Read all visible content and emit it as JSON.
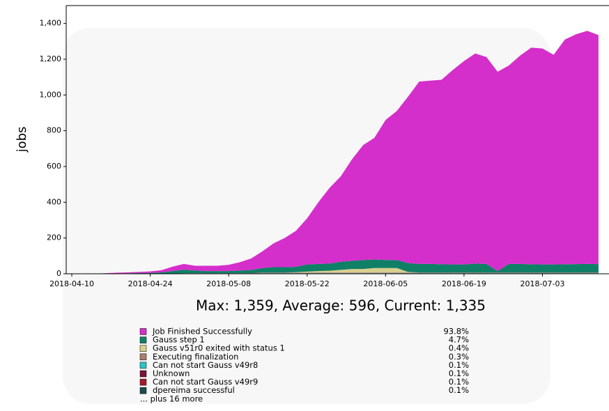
{
  "chart_data": {
    "type": "stacked_area",
    "subtitle": "Max: 1,359, Average: 596, Current: 1,335",
    "y_label": "jobs",
    "x": [
      "2018-04-10",
      "2018-04-12",
      "2018-04-14",
      "2018-04-16",
      "2018-04-18",
      "2018-04-20",
      "2018-04-22",
      "2018-04-24",
      "2018-04-26",
      "2018-04-28",
      "2018-04-30",
      "2018-05-02",
      "2018-05-04",
      "2018-05-06",
      "2018-05-08",
      "2018-05-10",
      "2018-05-12",
      "2018-05-14",
      "2018-05-16",
      "2018-05-18",
      "2018-05-20",
      "2018-05-22",
      "2018-05-24",
      "2018-05-26",
      "2018-05-28",
      "2018-05-30",
      "2018-06-01",
      "2018-06-03",
      "2018-06-05",
      "2018-06-07",
      "2018-06-09",
      "2018-06-11",
      "2018-06-13",
      "2018-06-15",
      "2018-06-17",
      "2018-06-19",
      "2018-06-21",
      "2018-06-23",
      "2018-06-25",
      "2018-06-27",
      "2018-06-29",
      "2018-07-01",
      "2018-07-03",
      "2018-07-05",
      "2018-07-07",
      "2018-07-09",
      "2018-07-11",
      "2018-07-13"
    ],
    "xlim": [
      "2018-04-09",
      "2018-07-15"
    ],
    "xticks": [
      "2018-04-10",
      "2018-04-24",
      "2018-05-08",
      "2018-05-22",
      "2018-06-05",
      "2018-06-19",
      "2018-07-03"
    ],
    "ylim": [
      0,
      1500
    ],
    "yticks": [
      0,
      200,
      400,
      600,
      800,
      {
        "value": 1000,
        "label": "1,000"
      },
      {
        "value": 1200,
        "label": "1,200"
      },
      {
        "value": 1400,
        "label": "1,400"
      }
    ],
    "series": [
      {
        "name": "Job Finished Successfully",
        "share": "93.8%",
        "color": "#d52fcb",
        "values": [
          0,
          0,
          1,
          2,
          4,
          5,
          6,
          8,
          12,
          25,
          32,
          27,
          30,
          30,
          35,
          47,
          64,
          93,
          133,
          163,
          201,
          258,
          345,
          423,
          478,
          568,
          643,
          680,
          783,
          833,
          930,
          1020,
          1025,
          1032,
          1088,
          1138,
          1175,
          1157,
          1115,
          1110,
          1165,
          1212,
          1208,
          1173,
          1257,
          1286,
          1304,
          1281
        ]
      },
      {
        "name": "Gauss step 1",
        "share": "4.7%",
        "color": "#0f8066",
        "values": [
          0,
          0,
          0,
          1,
          2,
          3,
          4,
          5,
          8,
          15,
          20,
          15,
          12,
          12,
          12,
          15,
          18,
          25,
          30,
          30,
          30,
          40,
          40,
          40,
          45,
          45,
          50,
          48,
          45,
          45,
          50,
          48,
          48,
          46,
          45,
          45,
          50,
          48,
          8,
          48,
          48,
          46,
          45,
          45,
          46,
          47,
          48,
          47
        ]
      },
      {
        "name": "Gauss v51r0 exited with status 1",
        "share": "0.4%",
        "color": "#d8cf8e",
        "values": [
          0,
          0,
          0,
          0,
          0,
          0,
          0,
          0,
          0,
          0,
          0,
          0,
          0,
          0,
          0,
          0,
          0,
          0,
          0,
          0,
          2,
          5,
          8,
          10,
          15,
          20,
          20,
          25,
          25,
          25,
          3,
          0,
          0,
          0,
          0,
          0,
          0,
          0,
          0,
          0,
          0,
          0,
          0,
          0,
          0,
          0,
          0,
          0
        ]
      },
      {
        "name": "Executing finalization",
        "share": "0.3%",
        "color": "#a8806c",
        "values": [
          0,
          0,
          0,
          0,
          0,
          0,
          0,
          0,
          0,
          0,
          3,
          3,
          3,
          3,
          3,
          3,
          3,
          3,
          3,
          3,
          3,
          3,
          3,
          3,
          3,
          3,
          3,
          3,
          3,
          3,
          3,
          3,
          3,
          3,
          3,
          3,
          3,
          3,
          3,
          3,
          3,
          3,
          3,
          3,
          3,
          3,
          3,
          3
        ]
      },
      {
        "name": "Can not start Gauss v49r8",
        "share": "0.1%",
        "color": "#2fc2c6",
        "values": [
          0,
          0,
          0,
          0,
          0,
          0,
          0,
          0,
          0,
          0,
          0,
          0,
          0,
          0,
          0,
          0,
          0,
          1,
          1,
          1,
          1,
          1,
          1,
          1,
          1,
          1,
          1,
          1,
          1,
          1,
          1,
          1,
          1,
          1,
          1,
          1,
          1,
          1,
          1,
          1,
          1,
          1,
          1,
          1,
          1,
          1,
          1,
          1
        ]
      },
      {
        "name": "Unknown",
        "share": "0.1%",
        "color": "#7b1438",
        "values": [
          0,
          0,
          0,
          0,
          0,
          0,
          0,
          0,
          0,
          0,
          0,
          0,
          0,
          0,
          0,
          0,
          0,
          1,
          1,
          1,
          1,
          1,
          1,
          1,
          1,
          1,
          1,
          1,
          1,
          1,
          1,
          1,
          1,
          1,
          1,
          1,
          1,
          1,
          1,
          1,
          1,
          1,
          1,
          1,
          1,
          1,
          1,
          1
        ]
      },
      {
        "name": "Can not start Gauss v49r9",
        "share": "0.1%",
        "color": "#a31c2c",
        "values": [
          0,
          0,
          0,
          0,
          0,
          0,
          0,
          0,
          0,
          0,
          0,
          0,
          0,
          0,
          0,
          0,
          0,
          1,
          1,
          1,
          1,
          1,
          1,
          1,
          1,
          1,
          1,
          1,
          1,
          1,
          1,
          1,
          1,
          1,
          1,
          1,
          1,
          1,
          1,
          1,
          1,
          1,
          1,
          1,
          1,
          1,
          1,
          1
        ]
      },
      {
        "name": "dpereima successful",
        "share": "0.1%",
        "color": "#1c4b4b",
        "values": [
          0,
          0,
          0,
          0,
          0,
          0,
          0,
          0,
          0,
          0,
          0,
          0,
          0,
          0,
          0,
          0,
          0,
          1,
          1,
          1,
          1,
          1,
          1,
          1,
          1,
          1,
          1,
          1,
          1,
          1,
          1,
          1,
          1,
          1,
          1,
          1,
          1,
          1,
          1,
          1,
          1,
          1,
          1,
          1,
          1,
          1,
          1,
          1
        ]
      }
    ],
    "legend_more": "... plus 16 more"
  }
}
